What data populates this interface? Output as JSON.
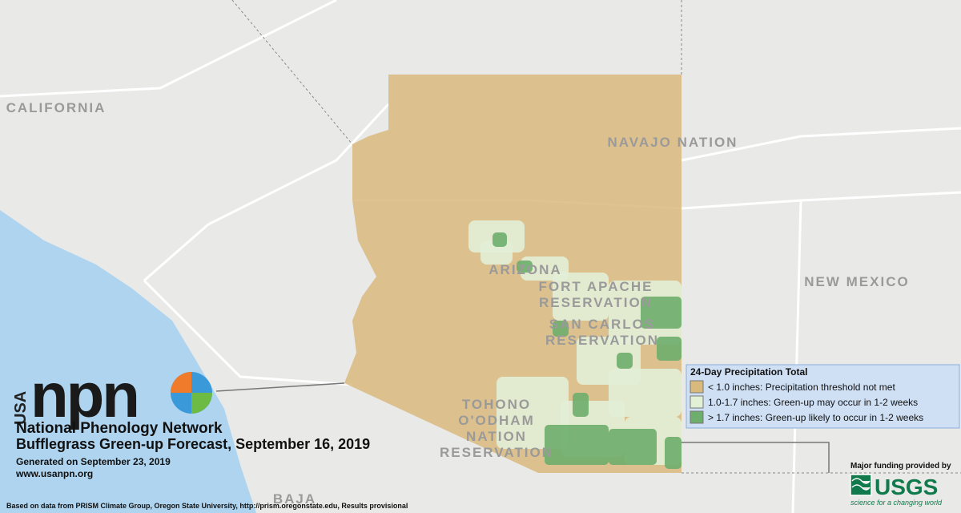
{
  "map": {
    "labels": [
      {
        "lines": [
          "CALIFORNIA"
        ]
      },
      {
        "lines": [
          "NAVAJO NATION"
        ]
      },
      {
        "lines": [
          "ARIZONA"
        ]
      },
      {
        "lines": [
          "FORT APACHE",
          "RESERVATION"
        ]
      },
      {
        "lines": [
          "SAN CARLOS",
          "RESERVATION"
        ]
      },
      {
        "lines": [
          "TOHONO",
          "O'ODHAM",
          "NATION",
          "RESERVATION"
        ]
      },
      {
        "lines": [
          "NEW MEXICO"
        ]
      },
      {
        "lines": [
          "BAJA"
        ]
      }
    ]
  },
  "logo": {
    "country": "USA",
    "acronym": "npn",
    "name": "National Phenology Network"
  },
  "header": {
    "title": "Bufflegrass Green-up Forecast, September 16, 2019",
    "generated": "Generated on September 23, 2019",
    "url": "www.usanpn.org"
  },
  "legend": {
    "title": "24-Day Precipitation Total",
    "items": [
      {
        "label": "< 1.0 inches: Precipitation threshold not met",
        "color": "#d9b97c"
      },
      {
        "label": "1.0-1.7 inches: Green-up may occur in 1-2 weeks",
        "color": "#e2f0d6"
      },
      {
        "label": "> 1.7 inches: Green-up likely to occur in 1-2 weeks",
        "color": "#6eae6c"
      }
    ]
  },
  "funding": {
    "note": "Major funding provided by",
    "agency": "USGS",
    "tagline": "science for a changing world"
  },
  "footer": {
    "source": "Based on data from PRISM Climate Group, Oregon State University, http://prism.oregonstate.edu, Results provisional"
  }
}
